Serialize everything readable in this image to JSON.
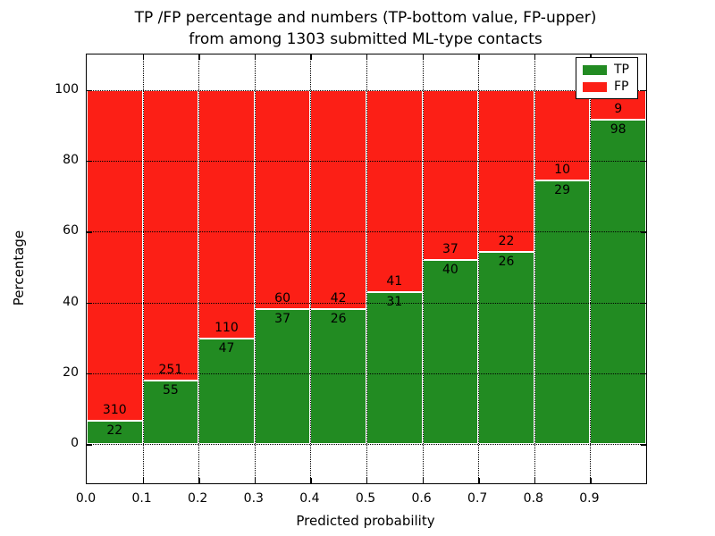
{
  "chart_data": {
    "type": "bar",
    "stacked": true,
    "normalized_to_percent": true,
    "title_line1": "TP /FP percentage and numbers (TP-bottom value, FP-upper)",
    "title_line2": "from among 1303 submitted ML-type contacts",
    "xlabel": "Predicted probability",
    "ylabel": "Percentage",
    "total_contacts": 1303,
    "categories": [
      "0.0-0.1",
      "0.1-0.2",
      "0.2-0.3",
      "0.3-0.4",
      "0.4-0.5",
      "0.5-0.6",
      "0.6-0.7",
      "0.7-0.8",
      "0.8-0.9",
      "0.9-1.0"
    ],
    "series": [
      {
        "name": "TP",
        "color": "#228b22",
        "values": [
          22,
          55,
          47,
          37,
          26,
          31,
          40,
          26,
          29,
          98
        ]
      },
      {
        "name": "FP",
        "color": "#fc1f16",
        "values": [
          310,
          251,
          110,
          60,
          42,
          41,
          37,
          22,
          10,
          9
        ]
      }
    ],
    "legend": [
      {
        "label": "TP",
        "color": "#228b22"
      },
      {
        "label": "FP",
        "color": "#fc1f16"
      }
    ],
    "legend_position": "upper right",
    "x_tick_labels": [
      "0.0",
      "0.1",
      "0.2",
      "0.3",
      "0.4",
      "0.5",
      "0.6",
      "0.7",
      "0.8",
      "0.9"
    ],
    "y_ticks": [
      0,
      20,
      40,
      60,
      80,
      100
    ],
    "xlim": [
      0.0,
      1.0
    ],
    "ylim": [
      -11,
      110
    ],
    "grid": "dotted, drawn above bars",
    "bar_edge_color": "#ffffff"
  }
}
